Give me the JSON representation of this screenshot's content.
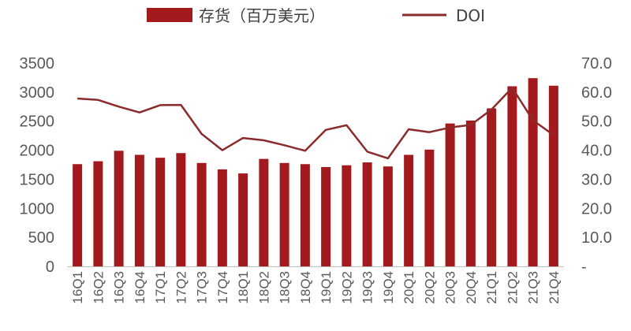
{
  "chart_data": {
    "type": "bar+line",
    "categories": [
      "16Q1",
      "16Q2",
      "16Q3",
      "16Q4",
      "17Q1",
      "17Q2",
      "17Q3",
      "17Q4",
      "18Q1",
      "18Q2",
      "18Q3",
      "18Q4",
      "19Q1",
      "19Q2",
      "19Q3",
      "19Q4",
      "20Q1",
      "20Q2",
      "20Q3",
      "20Q4",
      "21Q1",
      "21Q2",
      "21Q3",
      "21Q4"
    ],
    "series": [
      {
        "name": "存货（百万美元）",
        "type": "bar",
        "axis": "left",
        "color": "#a31a1e",
        "values": [
          1760,
          1810,
          1990,
          1920,
          1870,
          1950,
          1780,
          1670,
          1600,
          1850,
          1780,
          1760,
          1710,
          1740,
          1790,
          1720,
          1920,
          2010,
          2460,
          2510,
          2720,
          3100,
          3240,
          3110
        ]
      },
      {
        "name": "DOI",
        "type": "line",
        "axis": "right",
        "color": "#8b2b2b",
        "values": [
          57.8,
          57.3,
          55.0,
          53.0,
          55.5,
          55.6,
          45.6,
          40.0,
          44.2,
          43.4,
          41.7,
          39.8,
          47.0,
          48.6,
          39.5,
          37.2,
          47.2,
          46.2,
          47.8,
          48.7,
          54.0,
          61.5,
          50.3,
          45.2
        ]
      }
    ],
    "y_left": {
      "min": 0,
      "max": 3500,
      "ticks": [
        "0",
        "500",
        "1000",
        "1500",
        "2000",
        "2500",
        "3000",
        "3500"
      ]
    },
    "y_right": {
      "min": 0,
      "max": 70,
      "ticks": [
        "-",
        "10.0",
        "20.0",
        "30.0",
        "40.0",
        "50.0",
        "60.0",
        "70.0"
      ]
    },
    "grid": false,
    "legend_position": "top-center",
    "title": "",
    "xlabel": "",
    "ylabel": ""
  }
}
